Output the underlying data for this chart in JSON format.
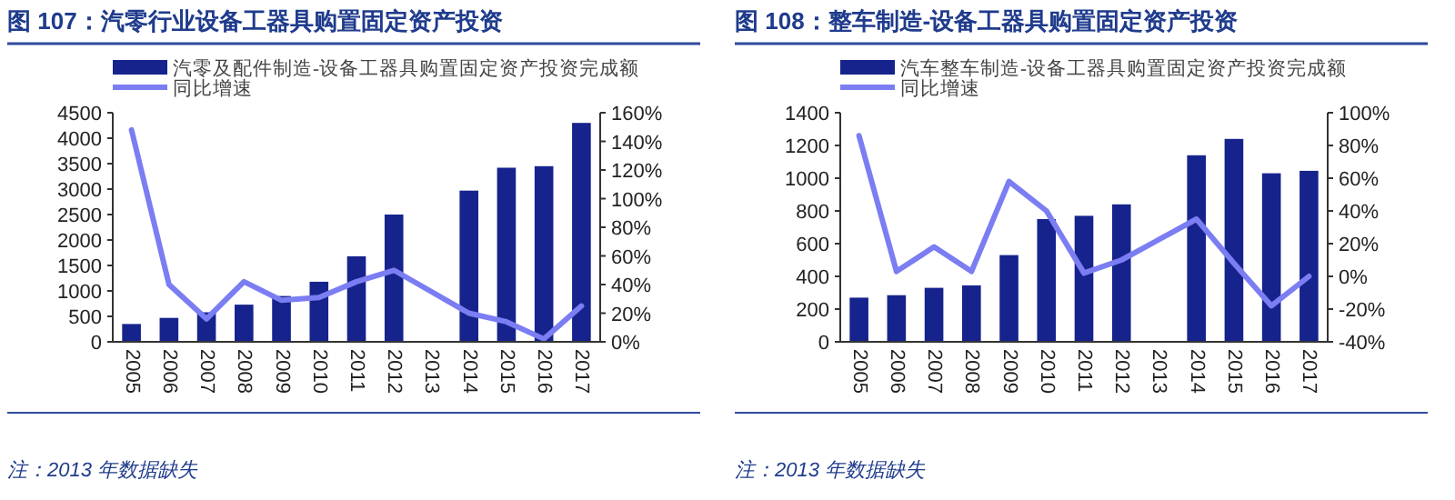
{
  "chart_data": [
    {
      "type": "bar",
      "title": "图 107：汽零行业设备工器具购置固定资产投资",
      "categories": [
        "2005",
        "2006",
        "2007",
        "2008",
        "2009",
        "2010",
        "2011",
        "2012",
        "2013",
        "2014",
        "2015",
        "2016",
        "2017"
      ],
      "series": [
        {
          "name": "汽零及配件制造-设备工器具购置固定资产投资完成额",
          "color": "#17238c",
          "values": [
            350,
            470,
            580,
            730,
            900,
            1180,
            1680,
            2500,
            null,
            2970,
            3420,
            3450,
            4300
          ]
        },
        {
          "name": "同比增速",
          "type": "line",
          "axis": "y2",
          "color": "#7b7df2",
          "values": [
            148,
            40,
            16,
            42,
            29,
            31,
            42,
            50,
            null,
            20,
            14,
            2,
            25
          ]
        }
      ],
      "ylim": [
        0,
        4500
      ],
      "yticks": [
        0,
        500,
        1000,
        1500,
        2000,
        2500,
        3000,
        3500,
        4000,
        4500
      ],
      "y2lim": [
        0,
        160
      ],
      "y2ticks": [
        {
          "value": 0,
          "label": "0%"
        },
        {
          "value": 20,
          "label": "20%"
        },
        {
          "value": 40,
          "label": "40%"
        },
        {
          "value": 60,
          "label": "60%"
        },
        {
          "value": 80,
          "label": "80%"
        },
        {
          "value": 100,
          "label": "100%"
        },
        {
          "value": 120,
          "label": "120%"
        },
        {
          "value": 140,
          "label": "140%"
        },
        {
          "value": 160,
          "label": "160%"
        }
      ],
      "legend": "top",
      "grid": false,
      "annotations": [
        "注：2013 年数据缺失"
      ]
    },
    {
      "type": "bar",
      "title": "图 108：整车制造-设备工器具购置固定资产投资",
      "categories": [
        "2005",
        "2006",
        "2007",
        "2008",
        "2009",
        "2010",
        "2011",
        "2012",
        "2013",
        "2014",
        "2015",
        "2016",
        "2017"
      ],
      "series": [
        {
          "name": "汽车整车制造-设备工器具购置固定资产投资完成额",
          "color": "#17238c",
          "values": [
            270,
            285,
            330,
            345,
            530,
            750,
            770,
            840,
            null,
            1140,
            1240,
            1030,
            1045
          ]
        },
        {
          "name": "同比增速",
          "type": "line",
          "axis": "y2",
          "color": "#7b7df2",
          "values": [
            86,
            3,
            18,
            3,
            58,
            40,
            2,
            10,
            null,
            35,
            8,
            -18,
            0
          ]
        }
      ],
      "ylim": [
        0,
        1400
      ],
      "yticks": [
        0,
        200,
        400,
        600,
        800,
        1000,
        1200,
        1400
      ],
      "y2lim": [
        -40,
        100
      ],
      "y2ticks": [
        {
          "value": -40,
          "label": "-40%"
        },
        {
          "value": -20,
          "label": "-20%"
        },
        {
          "value": 0,
          "label": "0%"
        },
        {
          "value": 20,
          "label": "20%"
        },
        {
          "value": 40,
          "label": "40%"
        },
        {
          "value": 60,
          "label": "60%"
        },
        {
          "value": 80,
          "label": "80%"
        },
        {
          "value": 100,
          "label": "100%"
        }
      ],
      "legend": "top",
      "grid": false,
      "annotations": [
        "注：2013 年数据缺失"
      ]
    }
  ]
}
